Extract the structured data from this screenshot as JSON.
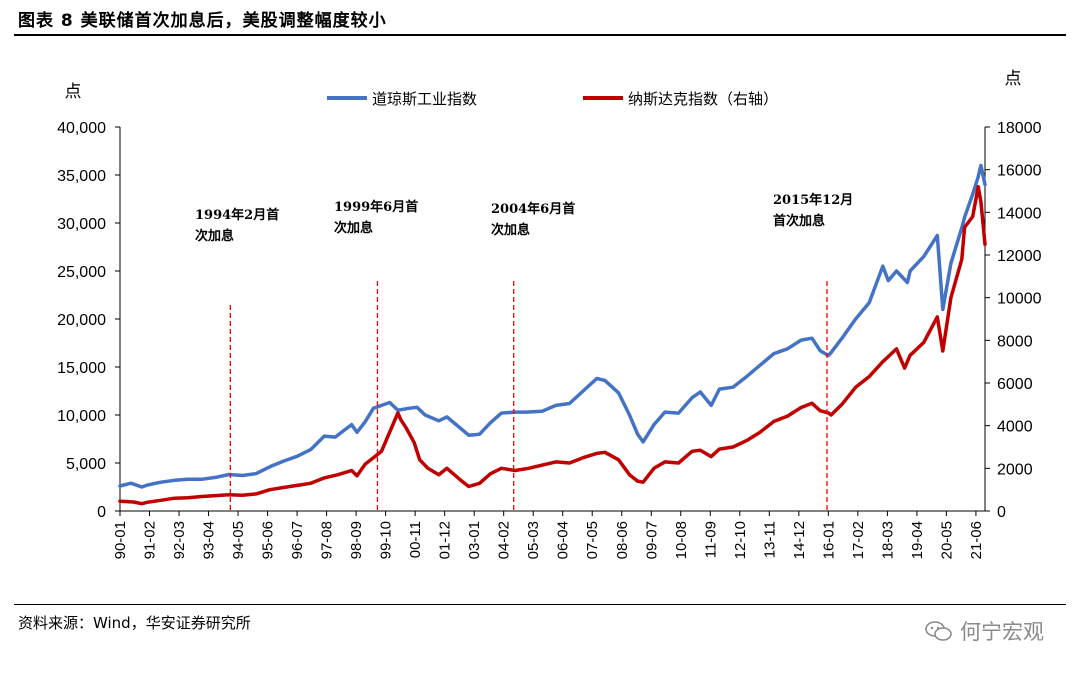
{
  "header": {
    "title": "图表 8  美联储首次加息后，美股调整幅度较小"
  },
  "footer": {
    "source": "资料来源：Wind，华安证券研究所",
    "watermark": "何宁宏观"
  },
  "chart_data": {
    "type": "line",
    "title": "图表 8  美联储首次加息后，美股调整幅度较小",
    "left_unit": "点",
    "right_unit": "点",
    "ylim": [
      0,
      40000
    ],
    "y2lim": [
      0,
      18000
    ],
    "y_ticks": [
      "0",
      "5,000",
      "10,000",
      "15,000",
      "20,000",
      "25,000",
      "30,000",
      "35,000",
      "40,000"
    ],
    "y2_ticks": [
      "0",
      "2000",
      "4000",
      "6000",
      "8000",
      "10000",
      "12000",
      "14000",
      "16000",
      "18000"
    ],
    "y_tick_values": [
      0,
      5000,
      10000,
      15000,
      20000,
      25000,
      30000,
      35000,
      40000
    ],
    "y2_tick_values": [
      0,
      2000,
      4000,
      6000,
      8000,
      10000,
      12000,
      14000,
      16000,
      18000
    ],
    "x_range": [
      1990.0,
      2021.75
    ],
    "categories": [
      "90-01",
      "91-02",
      "92-03",
      "93-04",
      "94-05",
      "95-06",
      "96-07",
      "97-08",
      "98-09",
      "99-10",
      "00-11",
      "01-12",
      "03-01",
      "04-02",
      "05-03",
      "06-04",
      "07-05",
      "08-06",
      "09-07",
      "10-08",
      "11-09",
      "12-10",
      "13-11",
      "14-12",
      "16-01",
      "17-02",
      "18-03",
      "19-04",
      "20-05",
      "21-06"
    ],
    "category_positions": [
      1990.0,
      1991.083,
      1992.167,
      1993.25,
      1994.333,
      1995.417,
      1996.5,
      1997.583,
      1998.667,
      1999.75,
      2000.833,
      2001.917,
      2003.0,
      2004.083,
      2005.167,
      2006.25,
      2007.333,
      2008.417,
      2009.5,
      2010.583,
      2011.667,
      2012.75,
      2013.833,
      2014.917,
      2016.0,
      2017.083,
      2018.167,
      2019.25,
      2020.333,
      2021.417
    ],
    "legend": [
      "道琼斯工业指数",
      "纳斯达克指数（右轴）"
    ],
    "series": [
      {
        "name": "道琼斯工业指数",
        "axis": "left",
        "color": "#4472C4",
        "x": [
          1990.0,
          1990.4,
          1990.8,
          1991.0,
          1991.5,
          1992.0,
          1992.5,
          1993.0,
          1993.5,
          1994.0,
          1994.5,
          1995.0,
          1995.5,
          1996.0,
          1996.5,
          1997.0,
          1997.5,
          1997.9,
          1998.5,
          1998.7,
          1999.0,
          1999.3,
          1999.6,
          1999.9,
          2000.2,
          2000.6,
          2000.9,
          2001.2,
          2001.7,
          2002.0,
          2002.5,
          2002.8,
          2003.2,
          2003.6,
          2004.0,
          2004.5,
          2004.9,
          2005.5,
          2006.0,
          2006.5,
          2007.0,
          2007.5,
          2007.8,
          2008.3,
          2008.7,
          2009.0,
          2009.2,
          2009.6,
          2010.0,
          2010.5,
          2011.0,
          2011.3,
          2011.7,
          2012.0,
          2012.5,
          2013.0,
          2013.5,
          2014.0,
          2014.5,
          2015.0,
          2015.4,
          2015.7,
          2016.0,
          2016.1,
          2016.5,
          2017.0,
          2017.5,
          2018.0,
          2018.2,
          2018.5,
          2018.9,
          2019.0,
          2019.5,
          2020.0,
          2020.2,
          2020.5,
          2020.9,
          2021.0,
          2021.3,
          2021.5,
          2021.6,
          2021.75
        ],
        "values": [
          2600,
          2900,
          2500,
          2700,
          3000,
          3200,
          3300,
          3300,
          3500,
          3800,
          3700,
          3900,
          4600,
          5200,
          5700,
          6400,
          7800,
          7700,
          9000,
          8200,
          9300,
          10700,
          11000,
          11300,
          10500,
          10700,
          10800,
          10000,
          9400,
          9800,
          8600,
          7900,
          8000,
          9200,
          10200,
          10300,
          10300,
          10400,
          11000,
          11200,
          12500,
          13800,
          13600,
          12300,
          10000,
          8000,
          7200,
          9000,
          10300,
          10200,
          11800,
          12400,
          11000,
          12700,
          12900,
          14000,
          15200,
          16400,
          16900,
          17800,
          18000,
          16700,
          16200,
          16500,
          18000,
          20000,
          21700,
          25500,
          24000,
          25000,
          23800,
          25000,
          26500,
          28700,
          21000,
          25800,
          29500,
          30600,
          33000,
          34800,
          36000,
          34000
        ]
      },
      {
        "name": "纳斯达克指数（右轴）",
        "axis": "right",
        "color": "#C00000",
        "x": [
          1990.0,
          1990.5,
          1990.8,
          1991.0,
          1991.5,
          1992.0,
          1992.5,
          1993.0,
          1993.5,
          1994.0,
          1994.5,
          1995.0,
          1995.5,
          1996.0,
          1996.5,
          1997.0,
          1997.5,
          1998.0,
          1998.5,
          1998.7,
          1999.0,
          1999.3,
          1999.6,
          1999.9,
          2000.2,
          2000.3,
          2000.5,
          2000.8,
          2001.0,
          2001.3,
          2001.7,
          2002.0,
          2002.5,
          2002.8,
          2003.2,
          2003.6,
          2004.0,
          2004.5,
          2005.0,
          2005.5,
          2006.0,
          2006.5,
          2007.0,
          2007.5,
          2007.8,
          2008.3,
          2008.7,
          2009.0,
          2009.2,
          2009.6,
          2010.0,
          2010.5,
          2011.0,
          2011.3,
          2011.7,
          2012.0,
          2012.5,
          2013.0,
          2013.5,
          2014.0,
          2014.5,
          2015.0,
          2015.4,
          2015.7,
          2016.0,
          2016.1,
          2016.5,
          2017.0,
          2017.5,
          2018.0,
          2018.5,
          2018.8,
          2019.0,
          2019.5,
          2020.0,
          2020.2,
          2020.5,
          2020.9,
          2021.0,
          2021.3,
          2021.5,
          2021.6,
          2021.75
        ],
        "values": [
          460,
          420,
          340,
          410,
          500,
          600,
          620,
          680,
          720,
          760,
          740,
          800,
          1000,
          1100,
          1200,
          1300,
          1550,
          1700,
          1900,
          1650,
          2200,
          2500,
          2800,
          3700,
          4600,
          4300,
          3900,
          3200,
          2400,
          2000,
          1700,
          2000,
          1450,
          1150,
          1300,
          1750,
          2000,
          1900,
          2000,
          2150,
          2300,
          2250,
          2500,
          2700,
          2750,
          2400,
          1700,
          1400,
          1350,
          2000,
          2300,
          2250,
          2800,
          2850,
          2550,
          2900,
          3000,
          3300,
          3700,
          4200,
          4450,
          4850,
          5050,
          4700,
          4600,
          4500,
          5000,
          5800,
          6300,
          7000,
          7600,
          6700,
          7300,
          7900,
          9100,
          7500,
          10000,
          11800,
          13300,
          13800,
          15200,
          14500,
          12500
        ]
      }
    ],
    "annotations": [
      {
        "x": 1994.05,
        "line1": "1994年2月首",
        "line2": "次加息"
      },
      {
        "x": 1999.45,
        "line1": "1999年6月首",
        "line2": "次加息"
      },
      {
        "x": 2004.45,
        "line1": "2004年6月首",
        "line2": "次加息"
      },
      {
        "x": 2015.95,
        "line1": "2015年12月",
        "line2": "首次加息"
      }
    ]
  }
}
